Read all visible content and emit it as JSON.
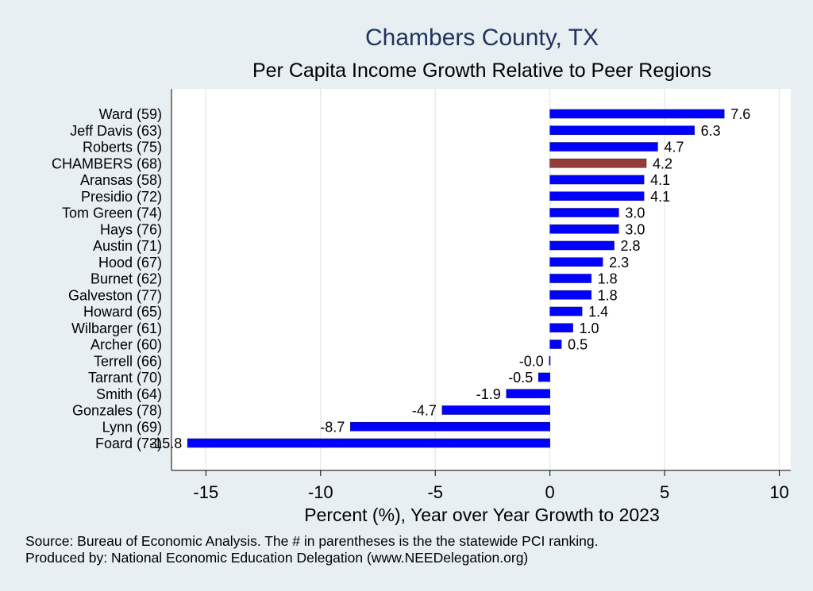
{
  "chart_data": {
    "type": "bar",
    "orientation": "horizontal",
    "title": "Chambers County, TX",
    "subtitle": "Per Capita Income Growth Relative to Peer Regions",
    "xlabel": "Percent (%), Year over Year Growth to 2023",
    "xlim": [
      -16.5,
      10.5
    ],
    "xticks": [
      -15,
      -10,
      -5,
      0,
      5,
      10
    ],
    "categories": [
      "Ward (59)",
      "Jeff Davis (63)",
      "Roberts (75)",
      "CHAMBERS (68)",
      "Aransas (58)",
      "Presidio (72)",
      "Tom Green (74)",
      "Hays (76)",
      "Austin (71)",
      "Hood (67)",
      "Burnet (62)",
      "Galveston (77)",
      "Howard (65)",
      "Wilbarger (61)",
      "Archer (60)",
      "Terrell (66)",
      "Tarrant (70)",
      "Smith (64)",
      "Gonzales (78)",
      "Lynn (69)",
      "Foard (73)"
    ],
    "values": [
      7.6,
      6.3,
      4.7,
      4.2,
      4.1,
      4.1,
      3.0,
      3.0,
      2.8,
      2.3,
      1.8,
      1.8,
      1.4,
      1.0,
      0.5,
      -0.03,
      -0.5,
      -1.9,
      -4.7,
      -8.7,
      -15.8
    ],
    "value_labels": [
      "7.6",
      "6.3",
      "4.7",
      "4.2",
      "4.1",
      "4.1",
      "3.0",
      "3.0",
      "2.8",
      "2.3",
      "1.8",
      "1.8",
      "1.4",
      "1.0",
      "0.5",
      "-0.0",
      "-0.5",
      "-1.9",
      "-4.7",
      "-8.7",
      "-15.8"
    ],
    "highlight_category": "CHAMBERS (68)",
    "colors": {
      "bar": "#0000ff",
      "highlight": "#943b3b",
      "background": "#e8eff2",
      "plot_bg": "#ffffff",
      "title": "#1e3560"
    },
    "grid": true,
    "source_note": "Source: Bureau of Economic Analysis. The # in parentheses is the the statewide PCI ranking.",
    "producer_note": "Produced by: National Economic Education Delegation (www.NEEDelegation.org)"
  }
}
